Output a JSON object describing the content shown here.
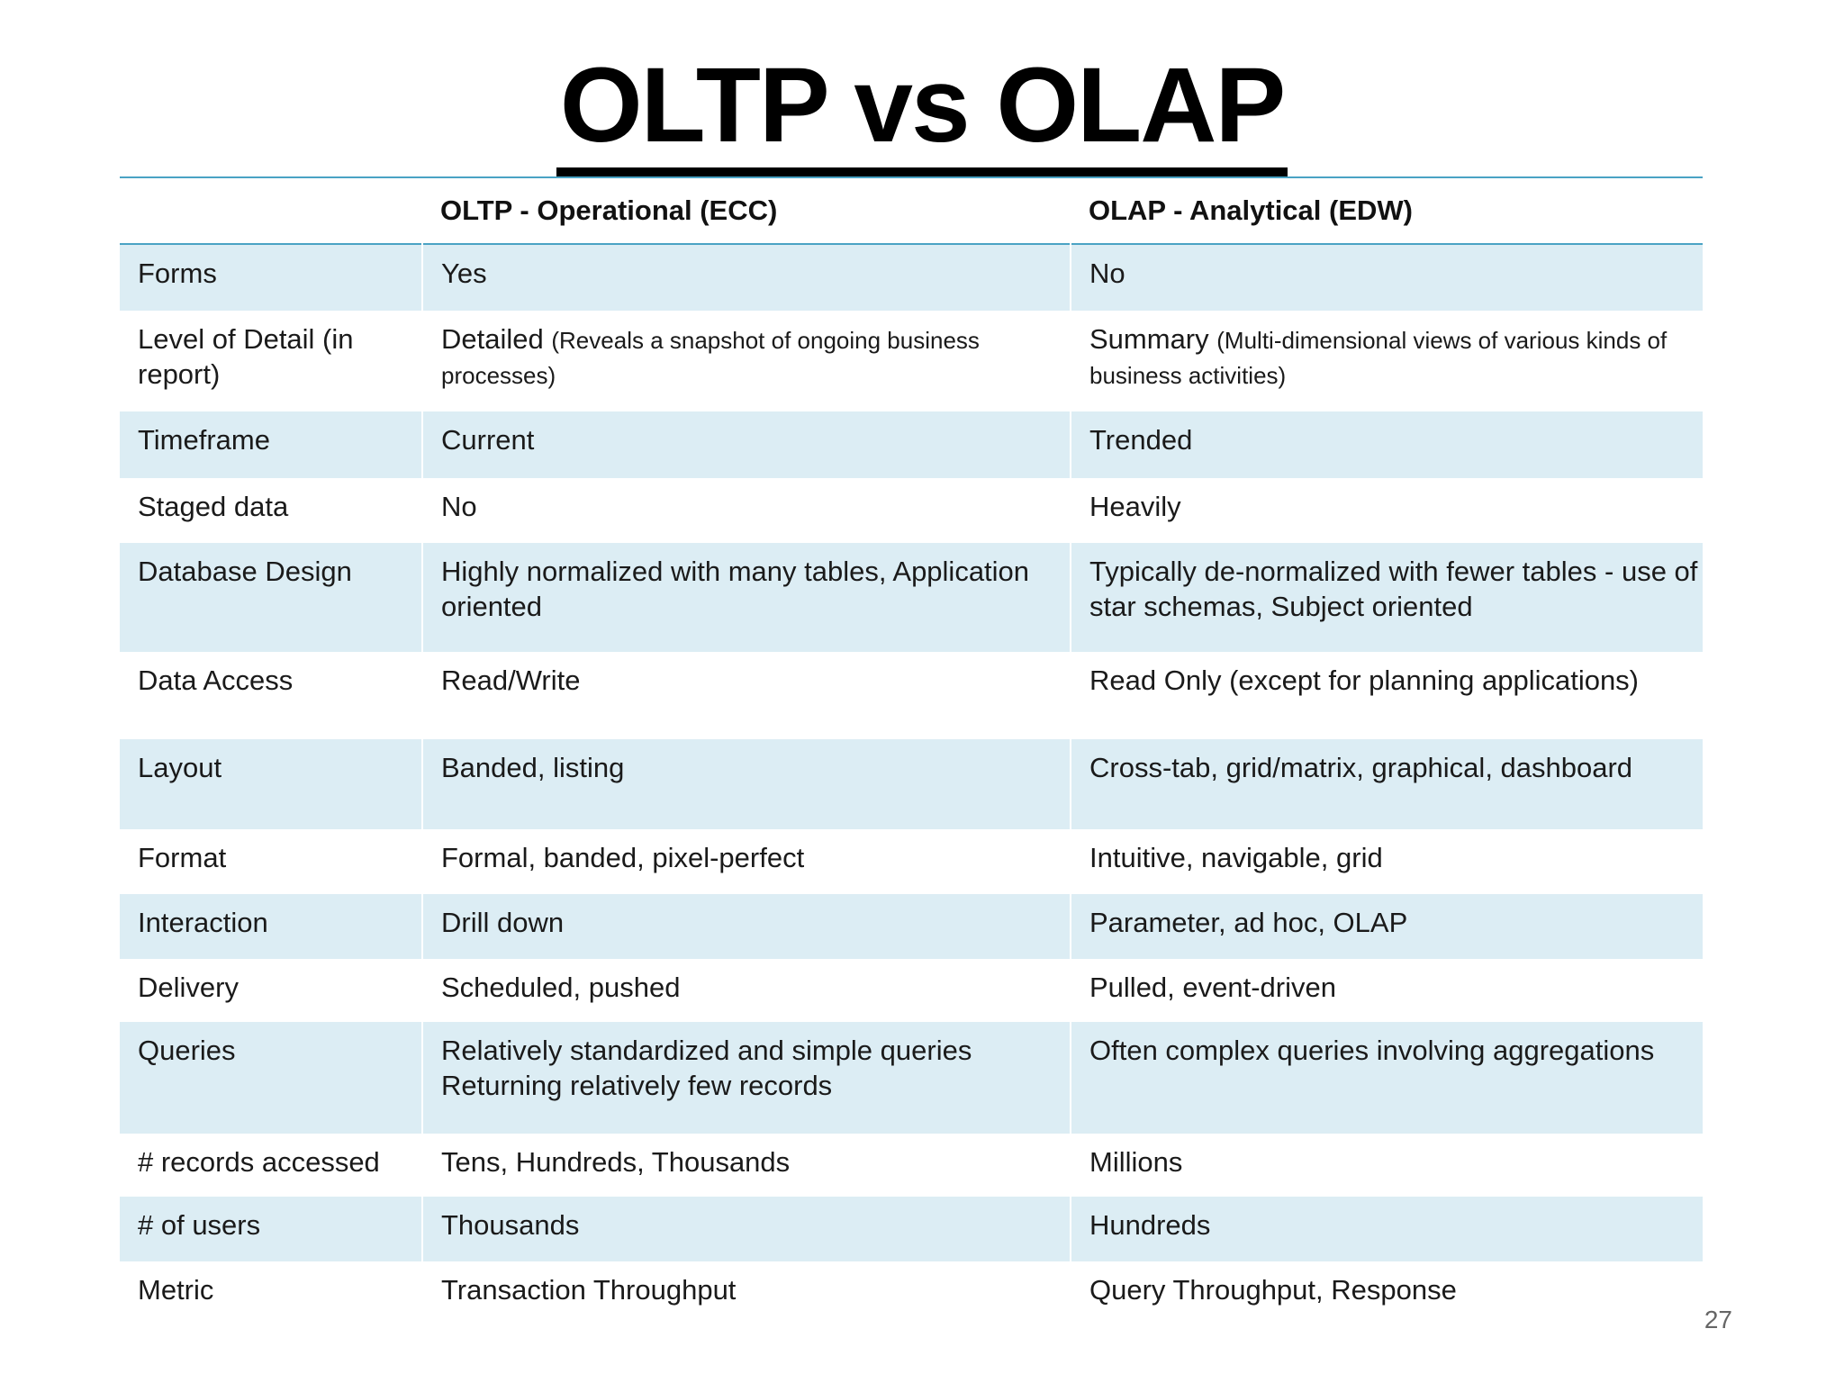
{
  "title": "OLTP vs OLAP",
  "table": {
    "headers": [
      "",
      "OLTP - Operational (ECC)",
      "OLAP - Analytical (EDW)"
    ],
    "rows": [
      {
        "label": "Forms",
        "oltp": "Yes",
        "olap": "No"
      },
      {
        "label": "Level of Detail (in report)",
        "oltp": "Detailed",
        "oltp_note": "(Reveals a snapshot of ongoing business processes)",
        "olap": "Summary",
        "olap_note": "(Multi-dimensional views of various kinds of business activities)"
      },
      {
        "label": "Timeframe",
        "oltp": "Current",
        "olap": "Trended"
      },
      {
        "label": "Staged data",
        "oltp": "No",
        "olap": "Heavily"
      },
      {
        "label": "Database Design",
        "oltp": "Highly normalized with many tables, Application oriented",
        "olap": "Typically de-normalized with fewer tables - use of star schemas, Subject oriented"
      },
      {
        "label": "Data Access",
        "oltp": "Read/Write",
        "olap": "Read Only (except for planning applications)"
      },
      {
        "label": "Layout",
        "oltp": "Banded, listing",
        "olap": "Cross-tab, grid/matrix, graphical, dashboard"
      },
      {
        "label": "Format",
        "oltp": "Formal, banded, pixel-perfect",
        "olap": "Intuitive, navigable, grid"
      },
      {
        "label": "Interaction",
        "oltp": "Drill down",
        "olap": "Parameter, ad hoc, OLAP"
      },
      {
        "label": "Delivery",
        "oltp": "Scheduled, pushed",
        "olap": "Pulled, event-driven"
      },
      {
        "label": "Queries",
        "oltp": "Relatively standardized and simple queries",
        "oltp_line2": "Returning relatively few records",
        "olap": "Often complex queries involving aggregations"
      },
      {
        "label": "# records accessed",
        "oltp": "Tens, Hundreds, Thousands",
        "olap": "Millions"
      },
      {
        "label": "# of users",
        "oltp": "Thousands",
        "olap": "Hundreds"
      },
      {
        "label": "Metric",
        "oltp": "Transaction Throughput",
        "olap": "Query Throughput, Response"
      }
    ]
  },
  "page_number": "27",
  "colors": {
    "band": "#dcedf4",
    "rule": "#4aa3c4"
  }
}
